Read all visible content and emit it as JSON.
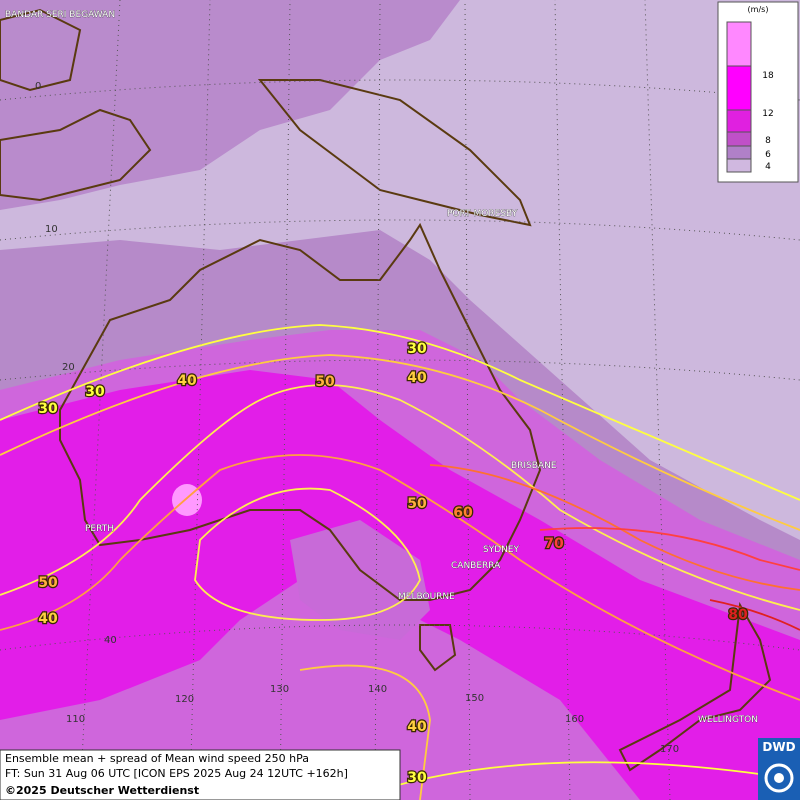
{
  "legend": {
    "unit": "(m/s)",
    "levels": [
      18,
      12,
      8,
      6,
      4
    ]
  },
  "cities": [
    "BANDAR SERI BEGAWAN",
    "PORT MORESBY",
    "BRISBANE",
    "PERTH",
    "SYDNEY",
    "CANBERRA",
    "MELBOURNE",
    "WELLINGTON"
  ],
  "latitude_labels": [
    0,
    10,
    20,
    40
  ],
  "longitude_labels": [
    110,
    120,
    130,
    140,
    150,
    160,
    170
  ],
  "contour_labels": [
    30,
    40,
    50,
    40,
    30,
    30,
    50,
    60,
    70,
    80,
    50,
    40,
    40,
    30
  ],
  "footer": {
    "line1": "Ensemble mean + spread of Mean wind speed 250 hPa",
    "line2": "FT: Sun 31 Aug 06 UTC [ICON EPS 2025 Aug 24 12UTC +162h]",
    "line3": "©2025 Deutscher Wetterdienst"
  },
  "logo": "DWD"
}
